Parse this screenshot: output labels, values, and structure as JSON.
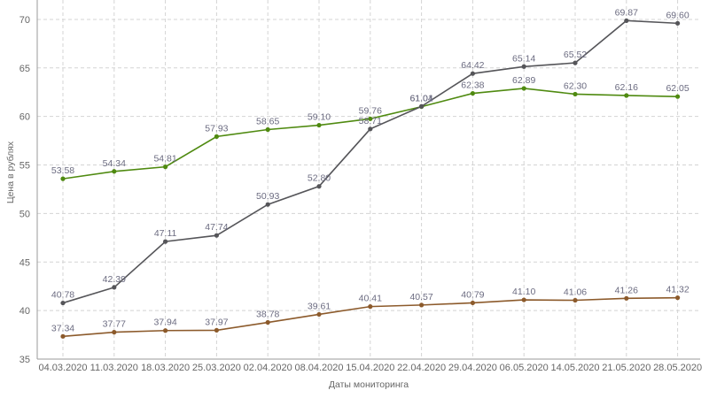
{
  "chart_data": {
    "type": "line",
    "title": "",
    "xlabel": "Даты мониторинга",
    "ylabel": "Цена в рублях",
    "ylim": [
      35,
      72
    ],
    "yticks": [
      35,
      40,
      45,
      50,
      55,
      60,
      65,
      70
    ],
    "grid": true,
    "legend": "none",
    "categories": [
      "04.03.2020",
      "11.03.2020",
      "18.03.2020",
      "25.03.2020",
      "02.04.2020",
      "08.04.2020",
      "15.04.2020",
      "22.04.2020",
      "29.04.2020",
      "06.05.2020",
      "14.05.2020",
      "21.05.2020",
      "28.05.2020"
    ],
    "series": [
      {
        "color": "#4f8a10",
        "values": [
          53.58,
          54.34,
          54.81,
          57.93,
          58.65,
          59.1,
          59.76,
          61.01,
          62.38,
          62.89,
          62.3,
          62.16,
          62.05
        ],
        "labels": [
          "53.58",
          "54.34",
          "54.81",
          "57.93",
          "58.65",
          "59.10",
          "59.76",
          "61.01",
          "62.38",
          "62.89",
          "62.30",
          "62.16",
          "62.05"
        ]
      },
      {
        "color": "#555559",
        "values": [
          40.78,
          42.39,
          47.11,
          47.74,
          50.93,
          52.8,
          58.71,
          61.04,
          64.42,
          65.14,
          65.52,
          69.87,
          69.6
        ],
        "labels": [
          "40.78",
          "42.39",
          "47.11",
          "47.74",
          "50.93",
          "52.80",
          "58.71",
          "61.04",
          "64.42",
          "65.14",
          "65.52",
          "69.87",
          "69.60"
        ]
      },
      {
        "color": "#8c5a2b",
        "values": [
          37.34,
          37.77,
          37.94,
          37.97,
          38.78,
          39.61,
          40.41,
          40.57,
          40.79,
          41.1,
          41.06,
          41.26,
          41.32
        ],
        "labels": [
          "37.34",
          "37.77",
          "37.94",
          "37.97",
          "38.78",
          "39.61",
          "40.41",
          "40.57",
          "40.79",
          "41.10",
          "41.06",
          "41.26",
          "41.32"
        ]
      }
    ]
  }
}
